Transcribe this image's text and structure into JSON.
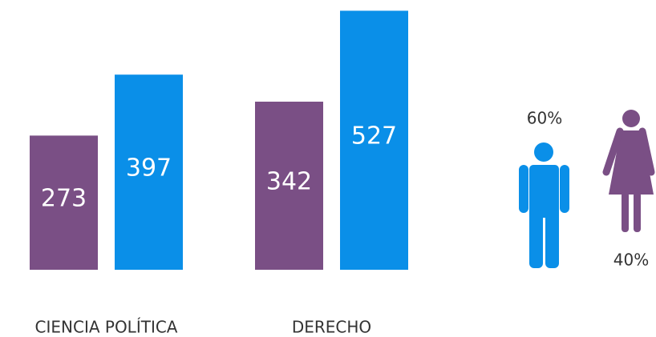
{
  "chart_data": [
    {
      "type": "bar",
      "categories": [
        "CIENCIA POLÍTICA",
        "DERECHO"
      ],
      "series": [
        {
          "color": "#7a4f85",
          "values": [
            273,
            342
          ]
        },
        {
          "color": "#0a8fe8",
          "values": [
            397,
            527
          ]
        }
      ]
    },
    {
      "type": "pictogram",
      "values": [
        60,
        40
      ],
      "value_labels": [
        "60%",
        "40%"
      ],
      "colors": [
        "#0a8fe8",
        "#7a4f85"
      ]
    }
  ]
}
